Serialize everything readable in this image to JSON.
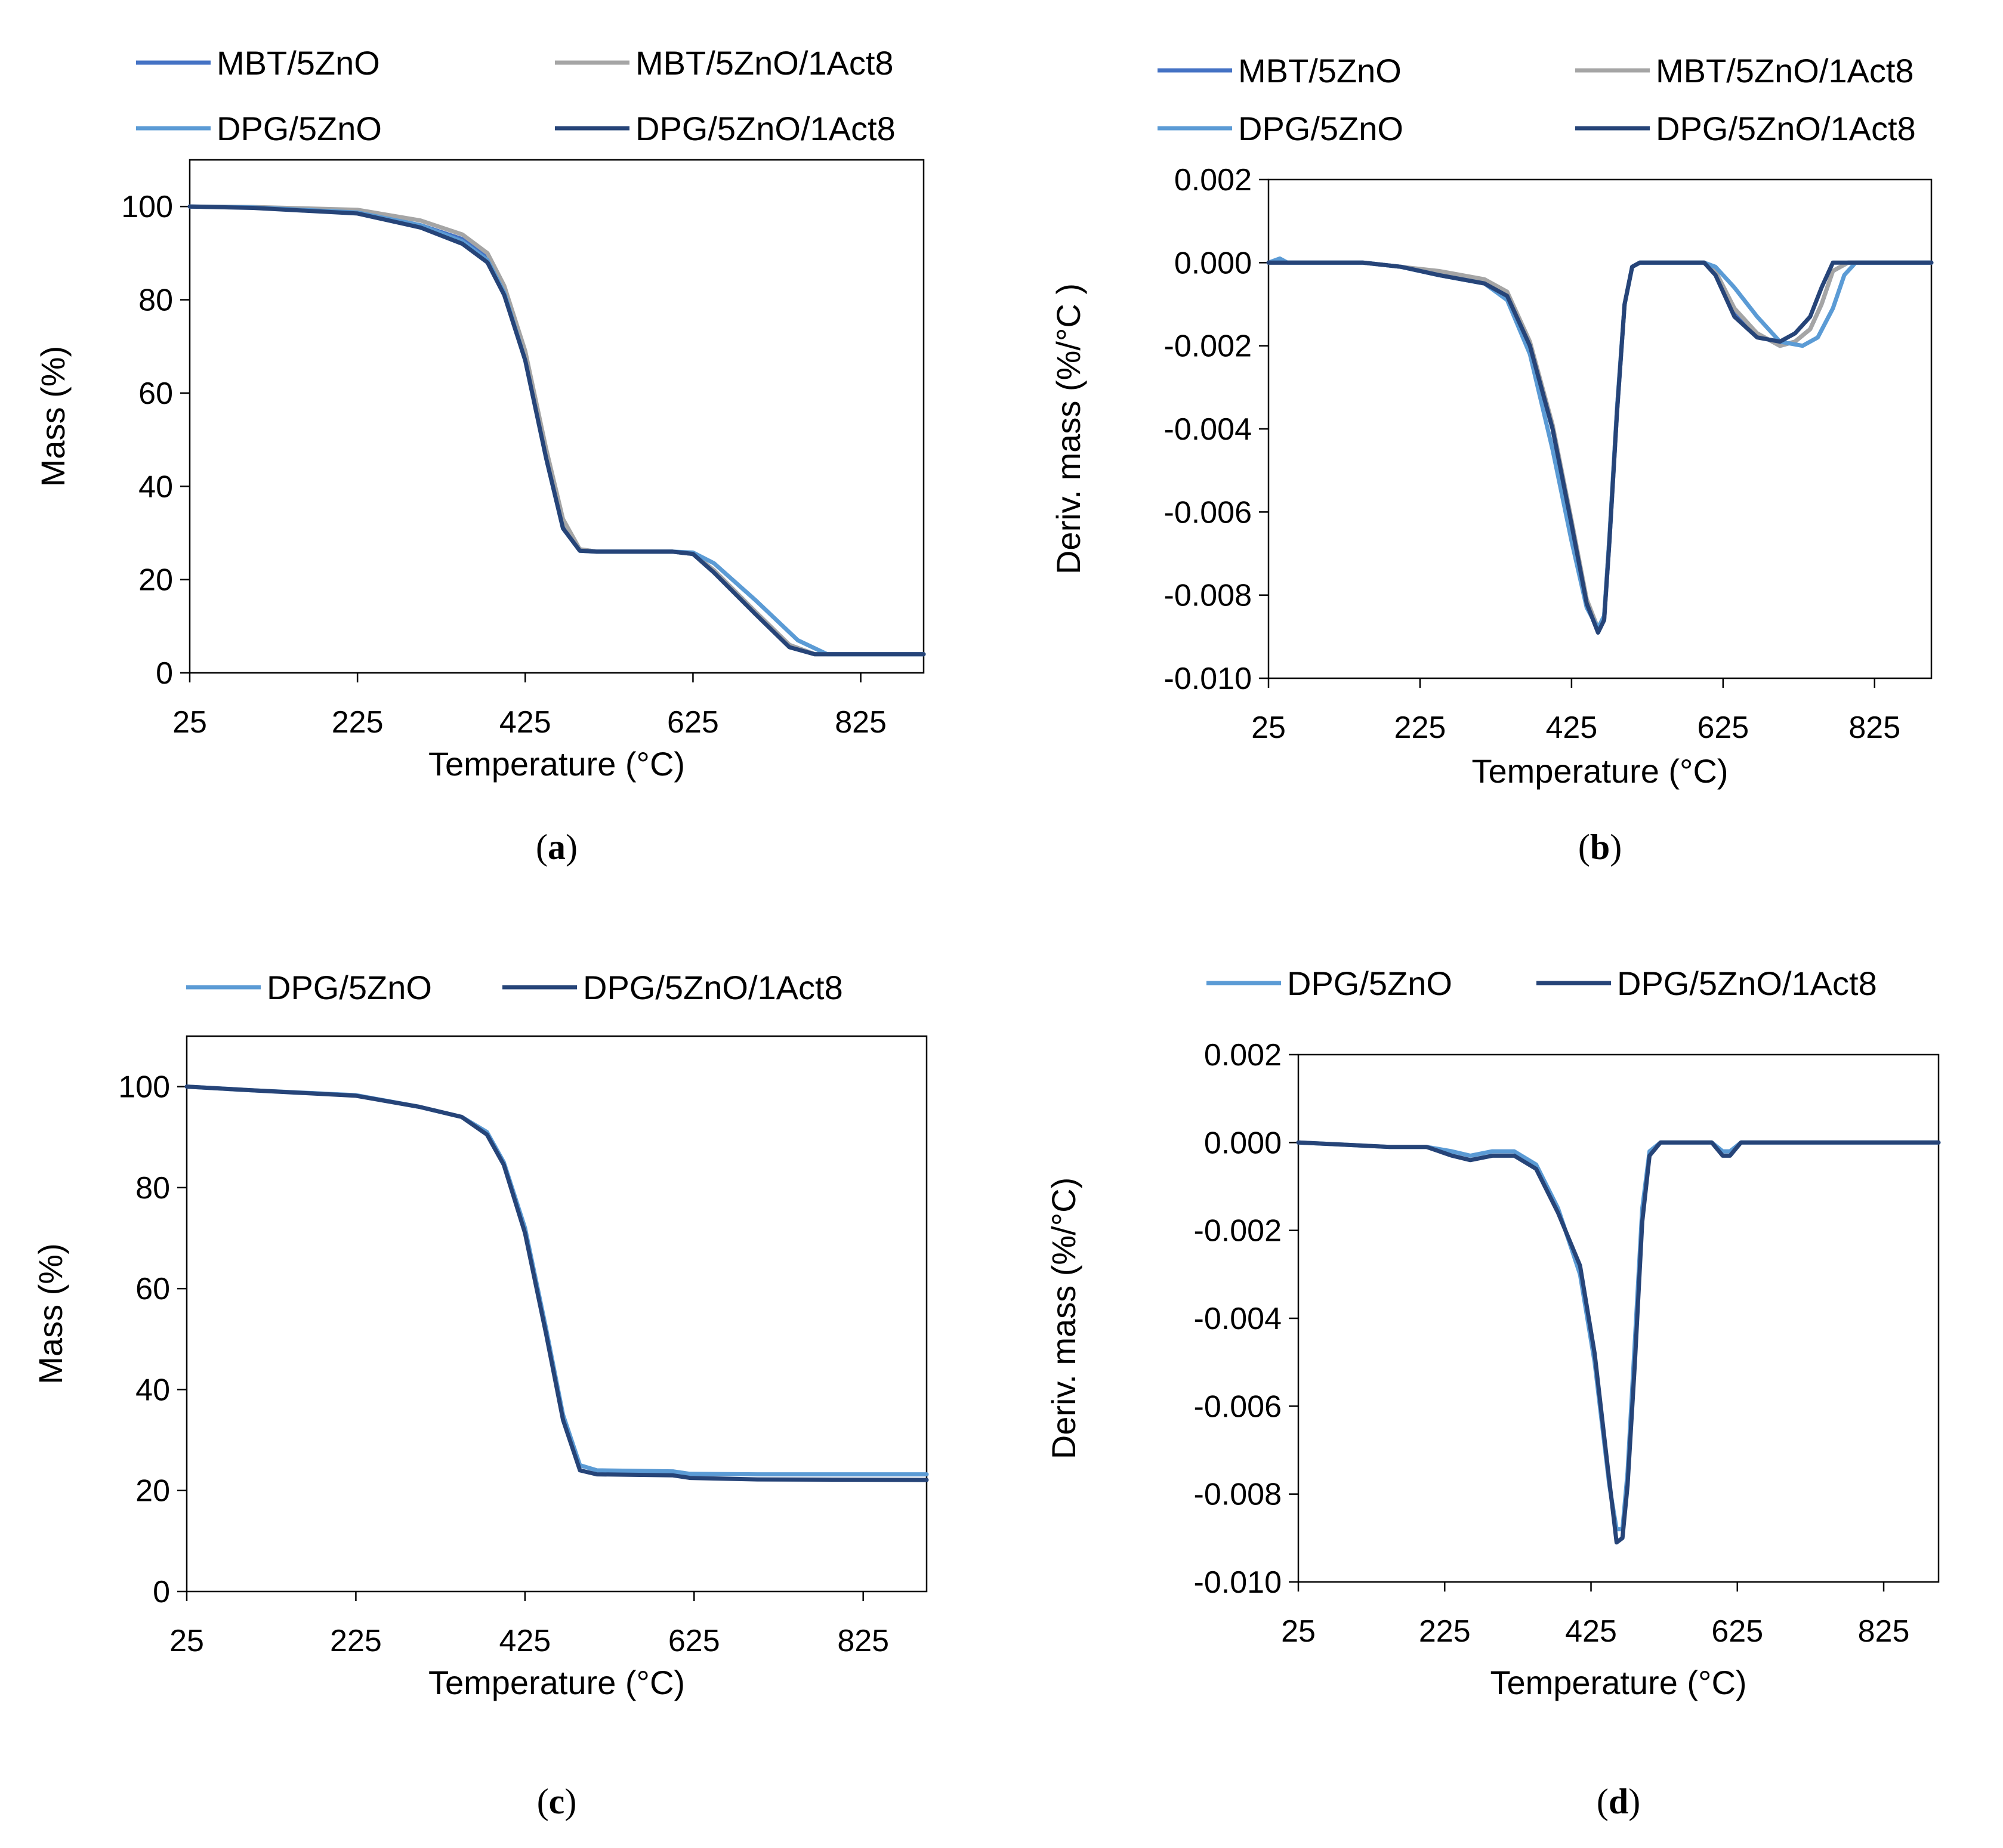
{
  "colors": {
    "MBT/5ZnO": "#4472C4",
    "MBT/5ZnO/1Act8": "#A5A5A5",
    "DPG/5ZnO": "#5B9BD5",
    "DPG/5ZnO/1Act8": "#264478"
  },
  "chart_data": [
    {
      "id": "a",
      "type": "line",
      "caption": "a",
      "xlabel": "Temperature (°C)",
      "ylabel": "Mass (%)",
      "xlim": [
        25,
        900
      ],
      "ylim": [
        0,
        110
      ],
      "xticks": [
        25,
        225,
        425,
        625,
        825
      ],
      "yticks": [
        0,
        20,
        40,
        60,
        80,
        100
      ],
      "ytick_labels": [
        "0",
        "20",
        "40",
        "60",
        "80",
        "100"
      ],
      "legend": [
        "MBT/5ZnO",
        "MBT/5ZnO/1Act8",
        "DPG/5ZnO",
        "DPG/5ZnO/1Act8"
      ],
      "series": [
        {
          "name": "MBT/5ZnO",
          "x": [
            25,
            100,
            225,
            300,
            350,
            380,
            400,
            425,
            450,
            470,
            490,
            510,
            600,
            625,
            650,
            700,
            740,
            770,
            900
          ],
          "y": [
            100,
            99.8,
            98.8,
            96,
            93,
            89,
            82,
            68,
            47,
            32,
            26.5,
            26,
            26,
            25.5,
            22,
            13,
            6,
            4,
            4
          ]
        },
        {
          "name": "MBT/5ZnO/1Act8",
          "x": [
            25,
            100,
            225,
            300,
            350,
            380,
            400,
            425,
            450,
            470,
            490,
            510,
            600,
            625,
            650,
            700,
            740,
            770,
            900
          ],
          "y": [
            100,
            99.9,
            99.3,
            97,
            94,
            90,
            83,
            69,
            48,
            33,
            26.5,
            26,
            26,
            25.5,
            22,
            13,
            6,
            4,
            4
          ]
        },
        {
          "name": "DPG/5ZnO",
          "x": [
            25,
            100,
            225,
            300,
            350,
            380,
            400,
            425,
            450,
            470,
            490,
            510,
            600,
            625,
            650,
            700,
            750,
            785,
            900
          ],
          "y": [
            100,
            99.8,
            98.7,
            96,
            92.5,
            88.5,
            81.5,
            67,
            46,
            31,
            26.2,
            26,
            26,
            25.8,
            23.5,
            15.5,
            7,
            4,
            4
          ]
        },
        {
          "name": "DPG/5ZnO/1Act8",
          "x": [
            25,
            100,
            225,
            300,
            350,
            380,
            400,
            425,
            450,
            470,
            490,
            510,
            600,
            625,
            650,
            700,
            740,
            770,
            900
          ],
          "y": [
            100,
            99.7,
            98.5,
            95.5,
            92,
            88,
            81,
            67,
            46,
            31,
            26.2,
            26,
            26,
            25.5,
            21.5,
            12.5,
            5.5,
            4,
            4
          ]
        }
      ]
    },
    {
      "id": "b",
      "type": "line",
      "caption": "b",
      "xlabel": "Temperature (°C)",
      "ylabel": "Deriv. mass (%/°C )",
      "xlim": [
        25,
        900
      ],
      "ylim": [
        -0.01,
        0.002
      ],
      "xticks": [
        25,
        225,
        425,
        625,
        825
      ],
      "yticks": [
        -0.01,
        -0.008,
        -0.006,
        -0.004,
        -0.002,
        0.0,
        0.002
      ],
      "ytick_labels": [
        "-0.010",
        "-0.008",
        "-0.006",
        "-0.004",
        "-0.002",
        "0.000",
        "0.002"
      ],
      "legend": [
        "MBT/5ZnO",
        "MBT/5ZnO/1Act8",
        "DPG/5ZnO",
        "DPG/5ZnO/1Act8"
      ],
      "series": [
        {
          "name": "MBT/5ZnO",
          "x": [
            25,
            150,
            200,
            250,
            310,
            340,
            370,
            400,
            425,
            445,
            460,
            468,
            475,
            485,
            495,
            505,
            515,
            600,
            615,
            640,
            670,
            700,
            720,
            740,
            755,
            770,
            790,
            900
          ],
          "y": [
            0,
            0,
            -0.0001,
            -0.0003,
            -0.0005,
            -0.0008,
            -0.002,
            -0.004,
            -0.0063,
            -0.0082,
            -0.0089,
            -0.0086,
            -0.0067,
            -0.0036,
            -0.001,
            -0.0001,
            0,
            0,
            -0.0002,
            -0.0012,
            -0.0017,
            -0.002,
            -0.0019,
            -0.0016,
            -0.001,
            -0.0002,
            0,
            0
          ]
        },
        {
          "name": "MBT/5ZnO/1Act8",
          "x": [
            25,
            150,
            200,
            250,
            310,
            340,
            370,
            400,
            425,
            445,
            460,
            468,
            475,
            485,
            495,
            505,
            515,
            600,
            615,
            640,
            670,
            700,
            720,
            740,
            755,
            770,
            790,
            900
          ],
          "y": [
            0,
            0,
            -0.0001,
            -0.0002,
            -0.0004,
            -0.0007,
            -0.0019,
            -0.0039,
            -0.0062,
            -0.0081,
            -0.0088,
            -0.0085,
            -0.0066,
            -0.0035,
            -0.001,
            -0.0001,
            0,
            0,
            -0.0002,
            -0.0011,
            -0.0017,
            -0.002,
            -0.0019,
            -0.0016,
            -0.001,
            -0.0002,
            0,
            0
          ]
        },
        {
          "name": "DPG/5ZnO",
          "x": [
            25,
            40,
            50,
            150,
            200,
            250,
            310,
            340,
            370,
            400,
            425,
            445,
            460,
            468,
            475,
            485,
            495,
            505,
            515,
            600,
            615,
            640,
            670,
            700,
            730,
            750,
            770,
            785,
            800,
            900
          ],
          "y": [
            0,
            0.0001,
            0,
            0,
            -0.0001,
            -0.0003,
            -0.0005,
            -0.0009,
            -0.0022,
            -0.0045,
            -0.0067,
            -0.0083,
            -0.0088,
            -0.0085,
            -0.0066,
            -0.0035,
            -0.001,
            -0.0001,
            0,
            0,
            -0.0001,
            -0.0006,
            -0.0013,
            -0.0019,
            -0.002,
            -0.0018,
            -0.0011,
            -0.0003,
            0,
            0
          ]
        },
        {
          "name": "DPG/5ZnO/1Act8",
          "x": [
            25,
            150,
            200,
            250,
            310,
            340,
            370,
            400,
            425,
            445,
            460,
            468,
            475,
            485,
            495,
            505,
            515,
            600,
            615,
            640,
            670,
            700,
            720,
            740,
            755,
            770,
            790,
            900
          ],
          "y": [
            0,
            0,
            -0.0001,
            -0.0003,
            -0.0005,
            -0.0008,
            -0.002,
            -0.004,
            -0.0063,
            -0.0082,
            -0.0089,
            -0.0086,
            -0.0067,
            -0.0036,
            -0.001,
            -0.0001,
            0,
            0,
            -0.0003,
            -0.0013,
            -0.0018,
            -0.0019,
            -0.0017,
            -0.0013,
            -0.0006,
            0,
            0,
            0
          ]
        }
      ]
    },
    {
      "id": "c",
      "type": "line",
      "caption": "c",
      "xlabel": "Temperature (°C)",
      "ylabel": "Mass (%)",
      "xlim": [
        25,
        900
      ],
      "ylim": [
        0,
        110
      ],
      "xticks": [
        25,
        225,
        425,
        625,
        825
      ],
      "yticks": [
        0,
        20,
        40,
        60,
        80,
        100
      ],
      "ytick_labels": [
        "0",
        "20",
        "40",
        "60",
        "80",
        "100"
      ],
      "legend": [
        "DPG/5ZnO",
        "DPG/5ZnO/1Act8"
      ],
      "series": [
        {
          "name": "DPG/5ZnO",
          "x": [
            25,
            100,
            225,
            300,
            350,
            380,
            400,
            425,
            450,
            470,
            490,
            510,
            600,
            620,
            700,
            900
          ],
          "y": [
            100,
            99.3,
            98.3,
            96,
            94,
            91,
            85,
            72,
            52,
            35,
            25,
            24,
            23.8,
            23.3,
            23.2,
            23.2
          ]
        },
        {
          "name": "DPG/5ZnO/1Act8",
          "x": [
            25,
            100,
            225,
            300,
            350,
            380,
            400,
            425,
            450,
            470,
            490,
            510,
            600,
            620,
            700,
            900
          ],
          "y": [
            100,
            99.3,
            98.2,
            96,
            94,
            90.5,
            84.5,
            71,
            51,
            34,
            24,
            23.2,
            23,
            22.5,
            22.2,
            22.1
          ]
        }
      ]
    },
    {
      "id": "d",
      "type": "line",
      "caption": "d",
      "xlabel": "Temperature (°C)",
      "ylabel": "Deriv. mass (%/°C)",
      "xlim": [
        25,
        900
      ],
      "ylim": [
        -0.01,
        0.002
      ],
      "xticks": [
        25,
        225,
        425,
        625,
        825
      ],
      "yticks": [
        -0.01,
        -0.008,
        -0.006,
        -0.004,
        -0.002,
        0.0,
        0.002
      ],
      "ytick_labels": [
        "-0.010",
        "-0.008",
        "-0.006",
        "-0.004",
        "-0.002",
        "0.000",
        "0.002"
      ],
      "legend": [
        "DPG/5ZnO",
        "DPG/5ZnO/1Act8"
      ],
      "series": [
        {
          "name": "DPG/5ZnO",
          "x": [
            25,
            150,
            200,
            235,
            260,
            290,
            320,
            350,
            380,
            410,
            430,
            450,
            460,
            468,
            475,
            485,
            495,
            505,
            520,
            590,
            605,
            615,
            630,
            700,
            900
          ],
          "y": [
            0,
            -0.0001,
            -0.0001,
            -0.0002,
            -0.0003,
            -0.0002,
            -0.0002,
            -0.0005,
            -0.0015,
            -0.003,
            -0.005,
            -0.0078,
            -0.0088,
            -0.0088,
            -0.0075,
            -0.0045,
            -0.0015,
            -0.0002,
            0,
            0,
            -0.0002,
            -0.0002,
            0,
            0,
            0
          ]
        },
        {
          "name": "DPG/5ZnO/1Act8",
          "x": [
            25,
            150,
            200,
            235,
            260,
            290,
            320,
            350,
            380,
            410,
            430,
            450,
            460,
            468,
            475,
            485,
            495,
            505,
            520,
            590,
            605,
            615,
            630,
            700,
            900
          ],
          "y": [
            0,
            -0.0001,
            -0.0001,
            -0.0003,
            -0.0004,
            -0.0003,
            -0.0003,
            -0.0006,
            -0.0016,
            -0.0028,
            -0.0048,
            -0.0077,
            -0.0091,
            -0.009,
            -0.0078,
            -0.005,
            -0.0018,
            -0.0003,
            0,
            0,
            -0.0003,
            -0.0003,
            0,
            0,
            0
          ]
        }
      ]
    }
  ]
}
